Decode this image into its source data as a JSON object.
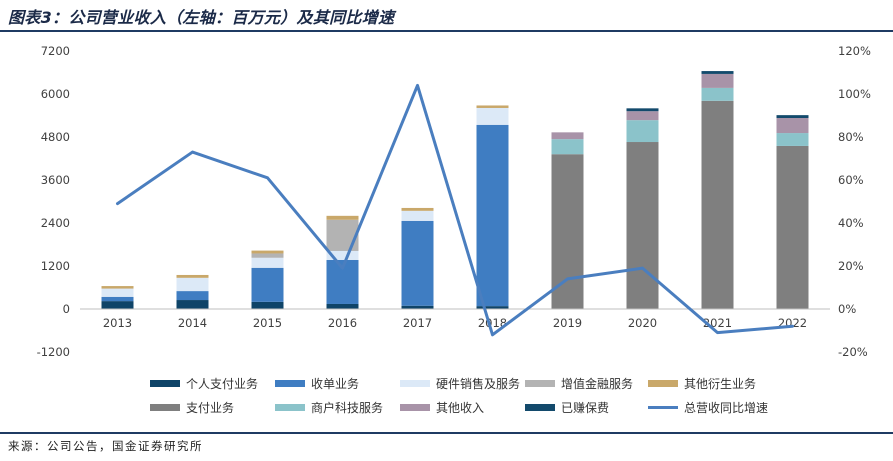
{
  "title": "图表3：公司营业收入（左轴：百万元）及其同比增速",
  "source": "来源：公司公告，国金证券研究所",
  "colors": {
    "rule": "#1F3B63",
    "title": "#1B2A48",
    "axis": "#BFBFBF"
  },
  "chart_data": {
    "type": "bar",
    "stacked": true,
    "categories": [
      "2013",
      "2014",
      "2015",
      "2016",
      "2017",
      "2018",
      "2019",
      "2020",
      "2021",
      "2022"
    ],
    "series": [
      {
        "name": "个人支付业务",
        "color": "#0F4468",
        "values": [
          220,
          250,
          200,
          140,
          90,
          80,
          0,
          0,
          0,
          0
        ]
      },
      {
        "name": "收单业务",
        "color": "#3F7DC2",
        "values": [
          120,
          250,
          950,
          1230,
          2370,
          5060,
          0,
          0,
          0,
          0
        ]
      },
      {
        "name": "硬件销售及服务",
        "color": "#DCE9F7",
        "values": [
          230,
          370,
          280,
          250,
          280,
          470,
          0,
          0,
          0,
          0
        ]
      },
      {
        "name": "增值金融服务",
        "color": "#B3B3B3",
        "values": [
          0,
          0,
          120,
          870,
          0,
          0,
          0,
          0,
          0,
          0
        ]
      },
      {
        "name": "其他衍生业务",
        "color": "#C9A86A",
        "values": [
          70,
          80,
          80,
          110,
          80,
          70,
          0,
          0,
          0,
          0
        ]
      },
      {
        "name": "支付业务",
        "color": "#7F7F7F",
        "values": [
          0,
          0,
          0,
          0,
          0,
          0,
          4320,
          4660,
          5810,
          4550
        ]
      },
      {
        "name": "商户科技服务",
        "color": "#8BC3CA",
        "values": [
          0,
          0,
          0,
          0,
          0,
          0,
          420,
          610,
          360,
          360
        ]
      },
      {
        "name": "其他收入",
        "color": "#A893A8",
        "values": [
          0,
          0,
          0,
          0,
          0,
          0,
          190,
          250,
          390,
          420
        ]
      },
      {
        "name": "已赚保费",
        "color": "#134A6C",
        "values": [
          0,
          0,
          0,
          0,
          0,
          0,
          0,
          80,
          80,
          80
        ]
      }
    ],
    "line_series": {
      "name": "总营收同比增速",
      "color": "#4A7EBF",
      "axis": "right",
      "values": [
        49,
        73,
        61,
        19,
        104,
        -12,
        14,
        19,
        -11,
        -8
      ]
    },
    "y_left": {
      "min": -1200,
      "max": 7200,
      "ticks": [
        7200,
        6000,
        4800,
        3600,
        2400,
        1200,
        0,
        -1200
      ]
    },
    "y_right": {
      "min": -20,
      "max": 120,
      "ticks": [
        120,
        100,
        80,
        60,
        40,
        20,
        0,
        -20
      ],
      "tick_labels": [
        "120%",
        "100%",
        "80%",
        "60%",
        "40%",
        "20%",
        "0%",
        "-20%"
      ]
    },
    "grid": false,
    "legend_position": "bottom"
  }
}
